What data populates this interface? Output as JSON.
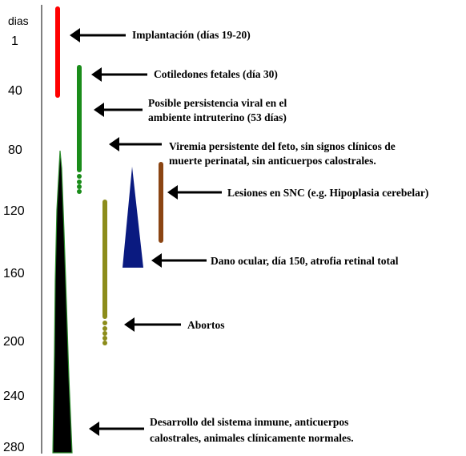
{
  "axis": {
    "unit_label": "dias",
    "ticks": [
      "1",
      "40",
      "80",
      "120",
      "160",
      "200",
      "240",
      "280"
    ]
  },
  "colors": {
    "implantation": "#ff0000",
    "cotyledons": "#1a8c1a",
    "cns": "#8b4513",
    "ocular": "#0a1a80",
    "abortion": "#8c8c1a",
    "immune_fill": "#000000",
    "immune_edge": "#2a8a2a"
  },
  "annotations": [
    {
      "id": "implantation",
      "lines": [
        "Implantación (días 19-20)"
      ]
    },
    {
      "id": "cotyledons",
      "lines": [
        "Cotiledones fetales (día 30)"
      ]
    },
    {
      "id": "viral-persistence",
      "lines": [
        "Posible persistencia viral en el",
        "ambiente intruterino (53 días)"
      ]
    },
    {
      "id": "viremia",
      "lines": [
        "Viremia persistente del feto, sin signos clínicos de",
        "muerte perinatal, sin anticuerpos calostrales."
      ]
    },
    {
      "id": "cns",
      "lines": [
        "Lesiones en SNC (e.g. Hipoplasia cerebelar)"
      ]
    },
    {
      "id": "ocular",
      "lines": [
        "Dano ocular, día 150, atrofia retinal total"
      ]
    },
    {
      "id": "abortion",
      "lines": [
        "Abortos"
      ]
    },
    {
      "id": "immune",
      "lines": [
        "Desarrollo del sistema inmune, anticuerpos",
        "calostrales, animales clínicamente normales."
      ]
    }
  ]
}
